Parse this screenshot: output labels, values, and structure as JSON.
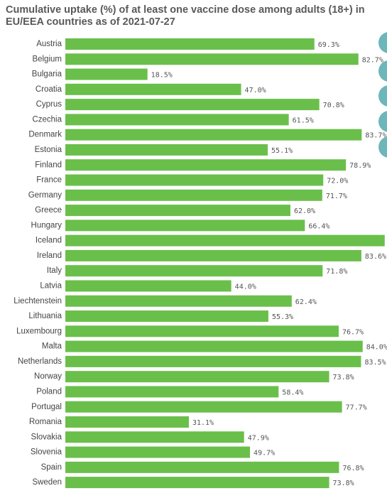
{
  "chart_data": {
    "type": "bar",
    "orientation": "horizontal",
    "title": "Cumulative uptake (%) of at least one vaccine dose among adults (18+) in EU/EEA countries as of 2021-07-27",
    "categories": [
      "Austria",
      "Belgium",
      "Bulgaria",
      "Croatia",
      "Cyprus",
      "Czechia",
      "Denmark",
      "Estonia",
      "Finland",
      "France",
      "Germany",
      "Greece",
      "Hungary",
      "Iceland",
      "Ireland",
      "Italy",
      "Latvia",
      "Liechtenstein",
      "Lithuania",
      "Luxembourg",
      "Malta",
      "Netherlands",
      "Norway",
      "Poland",
      "Portugal",
      "Romania",
      "Slovakia",
      "Slovenia",
      "Spain",
      "Sweden"
    ],
    "values": [
      69.3,
      82.7,
      18.5,
      47.0,
      70.8,
      61.5,
      83.7,
      55.1,
      78.9,
      72.0,
      71.7,
      62.0,
      66.4,
      90.7,
      83.6,
      71.8,
      44.0,
      62.4,
      55.3,
      76.7,
      84.0,
      83.5,
      73.8,
      58.4,
      77.7,
      31.1,
      47.9,
      49.7,
      76.8,
      73.8
    ],
    "value_labels": [
      "69.3%",
      "82.7%",
      "18.5%",
      "47.0%",
      "70.8%",
      "61.5%",
      "83.7%",
      "55.1%",
      "78.9%",
      "72.0%",
      "71.7%",
      "62.0%",
      "66.4%",
      null,
      "83.6%",
      "71.8%",
      "44.0%",
      "62.4%",
      "55.3%",
      "76.7%",
      "84.0%",
      "83.5%",
      "73.8%",
      "58.4%",
      "77.7%",
      "31.1%",
      "47.9%",
      "49.7%",
      "76.8%",
      "73.8%"
    ],
    "color": "#6abf4b",
    "xlim": [
      -6.5,
      91.4
    ]
  }
}
